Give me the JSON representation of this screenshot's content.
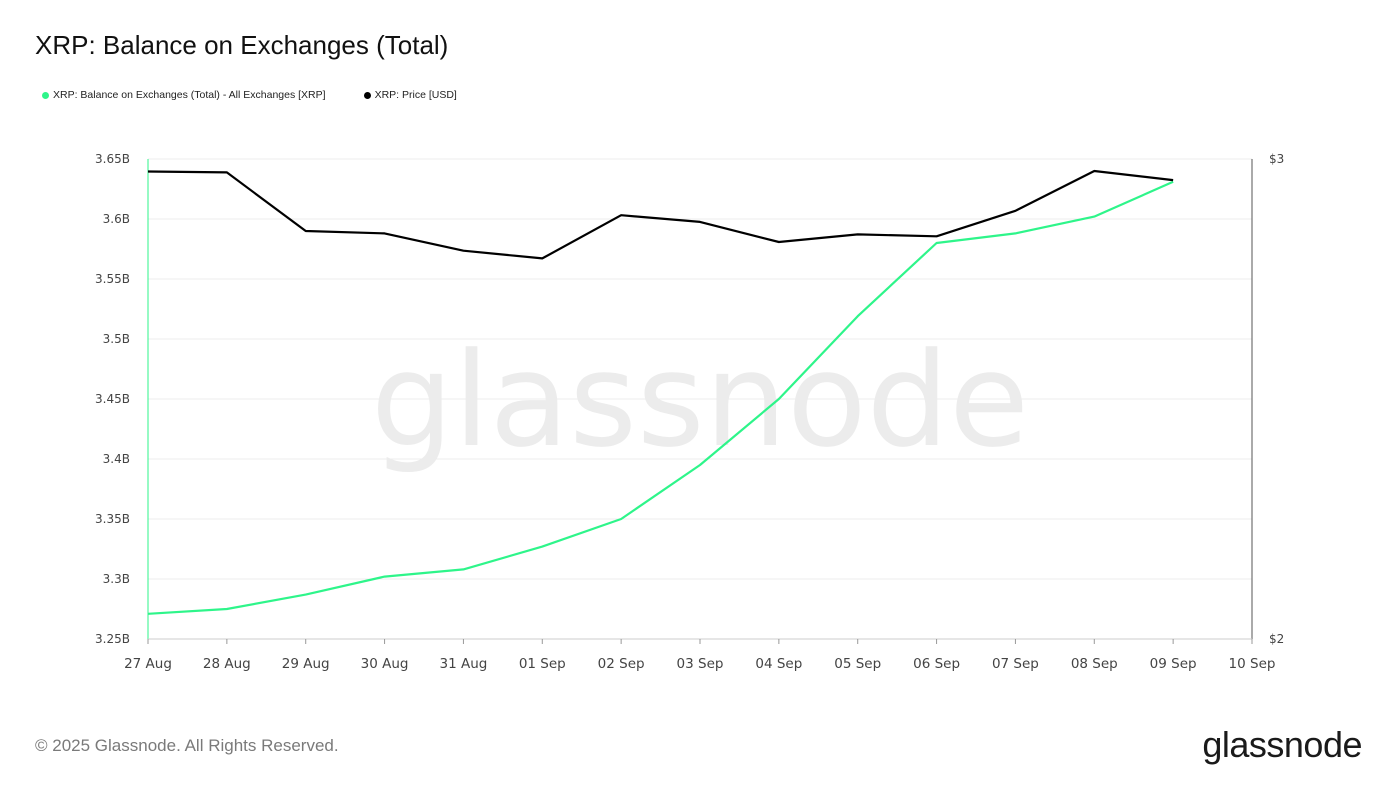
{
  "title": "XRP: Balance on Exchanges (Total)",
  "legend": [
    {
      "label": "XRP: Balance on Exchanges (Total) - All Exchanges [XRP]",
      "color": "#2ef58a"
    },
    {
      "label": "XRP: Price [USD]",
      "color": "#000000"
    }
  ],
  "watermark": "glassnode",
  "footer": {
    "copyright": "© 2025 Glassnode. All Rights Reserved.",
    "logo": "glassnode"
  },
  "chart_data": {
    "type": "line",
    "title": "XRP: Balance on Exchanges (Total)",
    "x": [
      "27 Aug",
      "28 Aug",
      "29 Aug",
      "30 Aug",
      "31 Aug",
      "01 Sep",
      "02 Sep",
      "03 Sep",
      "04 Sep",
      "05 Sep",
      "06 Sep",
      "07 Sep",
      "08 Sep",
      "09 Sep"
    ],
    "x_ticks": [
      "27 Aug",
      "28 Aug",
      "29 Aug",
      "30 Aug",
      "31 Aug",
      "01 Sep",
      "02 Sep",
      "03 Sep",
      "04 Sep",
      "05 Sep",
      "06 Sep",
      "07 Sep",
      "08 Sep",
      "09 Sep",
      "10 Sep"
    ],
    "y_left": {
      "ticks": [
        "3.25B",
        "3.3B",
        "3.35B",
        "3.4B",
        "3.45B",
        "3.5B",
        "3.55B",
        "3.6B",
        "3.65B"
      ],
      "lim": [
        3.25,
        3.65
      ],
      "unit": "B XRP"
    },
    "y_right": {
      "ticks": [
        "$2",
        "$3"
      ],
      "lim": [
        2,
        3
      ],
      "unit": "USD"
    },
    "series": [
      {
        "name": "XRP: Balance on Exchanges (Total) - All Exchanges [XRP]",
        "axis": "left",
        "color": "#2ef58a",
        "values": [
          3.271,
          3.275,
          3.287,
          3.302,
          3.308,
          3.327,
          3.35,
          3.395,
          3.45,
          3.519,
          3.58,
          3.588,
          3.602,
          3.631
        ]
      },
      {
        "name": "XRP: Price [USD]",
        "axis": "right",
        "color": "#000000",
        "values": [
          2.974,
          2.972,
          2.85,
          2.845,
          2.809,
          2.793,
          2.883,
          2.869,
          2.827,
          2.843,
          2.839,
          2.892,
          2.975,
          2.956
        ]
      }
    ],
    "grid": true,
    "legend_position": "top-left"
  }
}
